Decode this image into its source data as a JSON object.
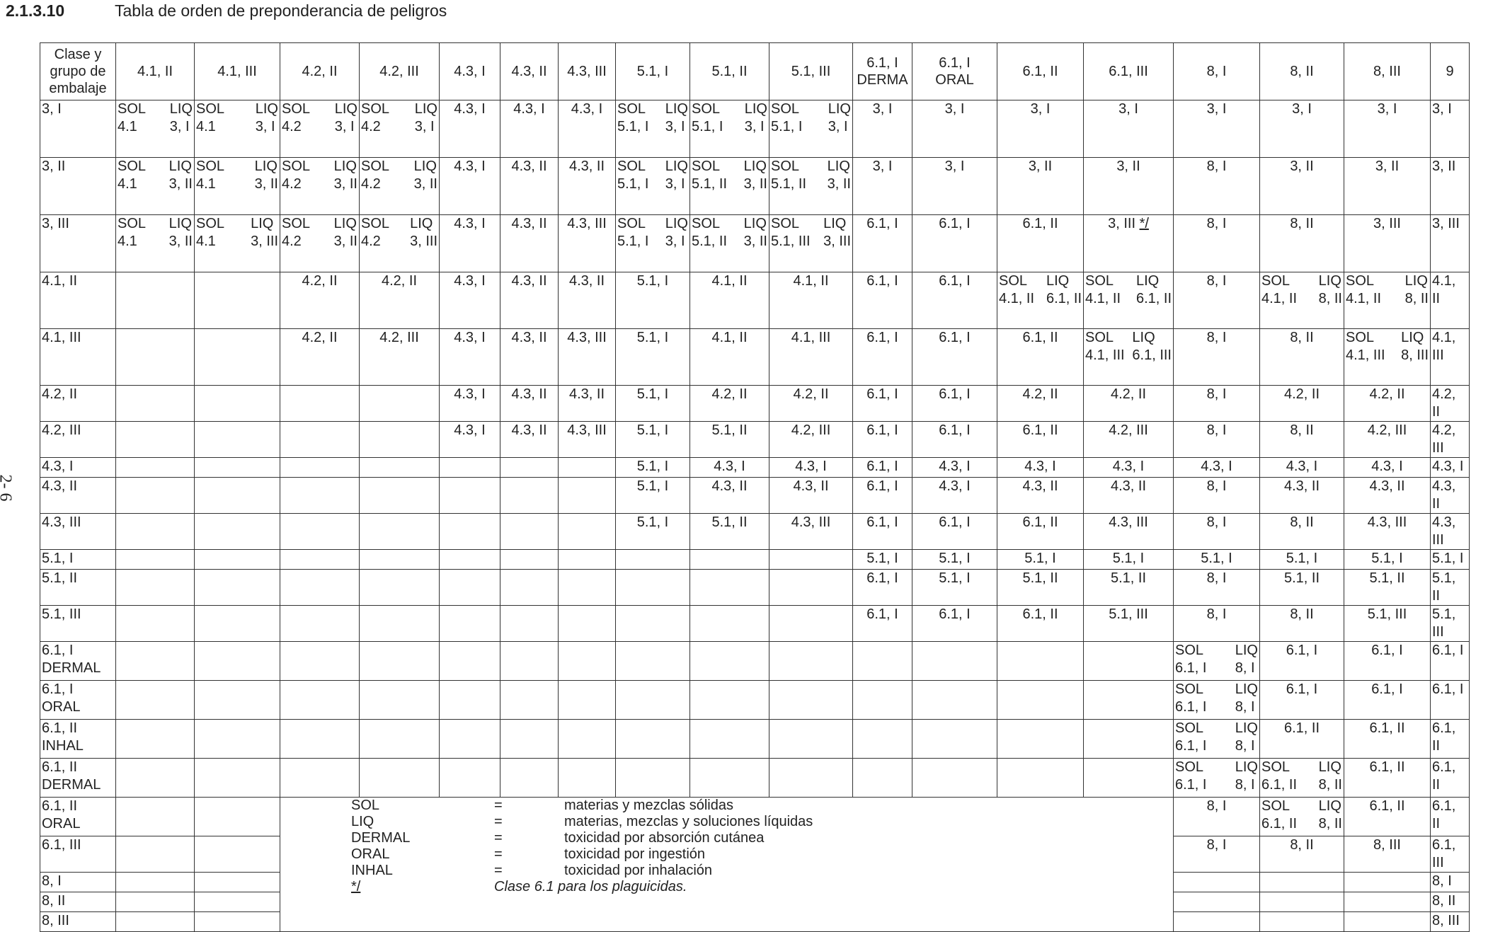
{
  "header": {
    "number": "2.1.3.10",
    "title": "Tabla de orden de preponderancia de peligros"
  },
  "page_number": "2- 6",
  "table": {
    "columns": [
      "Clase y grupo de embalaje",
      "4.1, II",
      "4.1, III",
      "4.2, II",
      "4.2, III",
      "4.3, I",
      "4.3, II",
      "4.3, III",
      "5.1, I",
      "5.1, II",
      "5.1, III",
      "6.1, I\nDERMA",
      "6.1, I\nORAL",
      "6.1, II",
      "6.1, III",
      "8, I",
      "8, II",
      "8, III",
      "9"
    ],
    "rows": [
      {
        "label": "3, I",
        "cells": [
          {
            "sol": "4.1",
            "liq": "3, I"
          },
          {
            "sol": "4.1",
            "liq": "3, I"
          },
          {
            "sol": "4.2",
            "liq": "3, I"
          },
          {
            "sol": "4.2",
            "liq": "3, I"
          },
          "4.3, I",
          "4.3, I",
          "4.3, I",
          {
            "sol": "5.1, I",
            "liq": "3, I"
          },
          {
            "sol": "5.1, I",
            "liq": "3, I"
          },
          {
            "sol": "5.1, I",
            "liq": "3, I"
          },
          "3, I",
          "3, I",
          "3, I",
          "3, I",
          "3, I",
          "3, I",
          "3, I",
          "3, I"
        ]
      },
      {
        "label": "3, II",
        "cells": [
          {
            "sol": "4.1",
            "liq": "3, II"
          },
          {
            "sol": "4.1",
            "liq": "3, II"
          },
          {
            "sol": "4.2",
            "liq": "3, II"
          },
          {
            "sol": "4.2",
            "liq": "3, II"
          },
          "4.3, I",
          "4.3, II",
          "4.3, II",
          {
            "sol": "5.1, I",
            "liq": "3, I"
          },
          {
            "sol": "5.1, II",
            "liq": "3, II"
          },
          {
            "sol": "5.1, II",
            "liq": "3, II"
          },
          "3, I",
          "3, I",
          "3, II",
          "3, II",
          "8, I",
          "3, II",
          "3, II",
          "3, II"
        ]
      },
      {
        "label": "3, III",
        "cells": [
          {
            "sol": "4.1",
            "liq": "3, II"
          },
          {
            "sol": "4.1",
            "liq": "3, III"
          },
          {
            "sol": "4.2",
            "liq": "3, II"
          },
          {
            "sol": "4.2",
            "liq": "3, III"
          },
          "4.3, I",
          "4.3, II",
          "4.3, III",
          {
            "sol": "5.1, I",
            "liq": "3, I"
          },
          {
            "sol": "5.1, II",
            "liq": "3, II"
          },
          {
            "sol": "5.1, III",
            "liq": "3, III"
          },
          "6.1, I",
          "6.1, I",
          "6.1, II",
          {
            "text": "3, III",
            "note": "*/"
          },
          "8, I",
          "8, II",
          "3, III",
          "3, III"
        ]
      },
      {
        "label": "4.1, II",
        "cells": [
          null,
          null,
          "4.2, II",
          "4.2, II",
          "4.3, I",
          "4.3, II",
          "4.3, II",
          "5.1, I",
          "4.1, II",
          "4.1, II",
          "6.1, I",
          "6.1, I",
          {
            "sol": "4.1, II",
            "liq": "6.1, II"
          },
          {
            "sol": "4.1, II",
            "liq": "6.1, II"
          },
          "8, I",
          {
            "sol": "4.1, II",
            "liq": "8, II"
          },
          {
            "sol": "4.1, II",
            "liq": "8, II"
          },
          "4.1, II"
        ]
      },
      {
        "label": "4.1, III",
        "cells": [
          null,
          null,
          "4.2, II",
          "4.2, III",
          "4.3, I",
          "4.3, II",
          "4.3, III",
          "5.1, I",
          "4.1, II",
          "4.1, III",
          "6.1, I",
          "6.1, I",
          "6.1, II",
          {
            "sol": "4.1, III",
            "liq": "6.1, III"
          },
          "8, I",
          "8, II",
          {
            "sol": "4.1, III",
            "liq": "8, III"
          },
          "4.1, III"
        ]
      },
      {
        "label": "4.2, II",
        "cells": [
          null,
          null,
          null,
          null,
          "4.3, I",
          "4.3, II",
          "4.3, II",
          "5.1, I",
          "4.2, II",
          "4.2, II",
          "6.1, I",
          "6.1, I",
          "4.2, II",
          "4.2, II",
          "8, I",
          "4.2, II",
          "4.2, II",
          "4.2, II"
        ]
      },
      {
        "label": "4.2, III",
        "cells": [
          null,
          null,
          null,
          null,
          "4.3, I",
          "4.3, II",
          "4.3, III",
          "5.1, I",
          "5.1, II",
          "4.2, III",
          "6.1, I",
          "6.1, I",
          "6.1, II",
          "4.2, III",
          "8, I",
          "8, II",
          "4.2, III",
          "4.2, III"
        ]
      },
      {
        "label": "4.3, I",
        "cells": [
          null,
          null,
          null,
          null,
          null,
          null,
          null,
          "5.1, I",
          "4.3, I",
          "4.3, I",
          "6.1, I",
          "4.3, I",
          "4.3, I",
          "4.3, I",
          "4.3, I",
          "4.3, I",
          "4.3, I",
          "4.3, I"
        ]
      },
      {
        "label": "4.3, II",
        "cells": [
          null,
          null,
          null,
          null,
          null,
          null,
          null,
          "5.1, I",
          "4.3, II",
          "4.3, II",
          "6.1, I",
          "4.3, I",
          "4.3, II",
          "4.3, II",
          "8, I",
          "4.3, II",
          "4.3, II",
          "4.3, II"
        ]
      },
      {
        "label": "4.3, III",
        "cells": [
          null,
          null,
          null,
          null,
          null,
          null,
          null,
          "5.1, I",
          "5.1, II",
          "4.3, III",
          "6.1, I",
          "6.1, I",
          "6.1, II",
          "4.3, III",
          "8, I",
          "8, II",
          "4.3, III",
          "4.3, III"
        ]
      },
      {
        "label": "5.1, I",
        "cells": [
          null,
          null,
          null,
          null,
          null,
          null,
          null,
          null,
          null,
          null,
          "5.1, I",
          "5.1, I",
          "5.1, I",
          "5.1, I",
          "5.1, I",
          "5.1, I",
          "5.1, I",
          "5.1, I"
        ]
      },
      {
        "label": "5.1, II",
        "cells": [
          null,
          null,
          null,
          null,
          null,
          null,
          null,
          null,
          null,
          null,
          "6.1, I",
          "5.1, I",
          "5.1, II",
          "5.1, II",
          "8, I",
          "5.1, II",
          "5.1, II",
          "5.1, II"
        ]
      },
      {
        "label": "5.1, III",
        "cells": [
          null,
          null,
          null,
          null,
          null,
          null,
          null,
          null,
          null,
          null,
          "6.1, I",
          "6.1, I",
          "6.1, II",
          "5.1, III",
          "8, I",
          "8, II",
          "5.1, III",
          "5.1, III"
        ]
      },
      {
        "label": "6.1, I\nDERMAL",
        "cells": [
          null,
          null,
          null,
          null,
          null,
          null,
          null,
          null,
          null,
          null,
          null,
          null,
          null,
          null,
          {
            "sol": "6.1, I",
            "liq": "8, I"
          },
          "6.1, I",
          "6.1, I",
          "6.1, I"
        ]
      },
      {
        "label": "6.1, I\nORAL",
        "cells": [
          null,
          null,
          null,
          null,
          null,
          null,
          null,
          null,
          null,
          null,
          null,
          null,
          null,
          null,
          {
            "sol": "6.1, I",
            "liq": "8, I"
          },
          "6.1, I",
          "6.1, I",
          "6.1, I"
        ]
      },
      {
        "label": "6.1, II\nINHAL",
        "cells": [
          null,
          null,
          null,
          null,
          null,
          null,
          null,
          null,
          null,
          null,
          null,
          null,
          null,
          null,
          {
            "sol": "6.1, I",
            "liq": "8, I"
          },
          "6.1, II",
          "6.1, II",
          "6.1, II"
        ]
      },
      {
        "label": "6.1, II\nDERMAL",
        "cells": [
          null,
          null,
          null,
          null,
          null,
          null,
          null,
          null,
          null,
          null,
          null,
          null,
          null,
          null,
          {
            "sol": "6.1, I",
            "liq": "8, I"
          },
          {
            "sol": "6.1, II",
            "liq": "8, II"
          },
          "6.1, II",
          "6.1, II"
        ]
      },
      {
        "label": "6.1, II\nORAL",
        "cells": [
          null,
          null,
          null,
          null,
          null,
          null,
          null,
          null,
          null,
          null,
          null,
          null,
          null,
          null,
          "8, I",
          {
            "sol": "6.1, II",
            "liq": "8, II"
          },
          "6.1, II",
          "6.1, II"
        ]
      },
      {
        "label": "6.1, III",
        "cells": [
          null,
          null,
          null,
          null,
          null,
          null,
          null,
          null,
          null,
          null,
          null,
          null,
          null,
          null,
          "8, I",
          "8, II",
          "8, III",
          "6.1, III"
        ]
      },
      {
        "label": "8, I",
        "cells": [
          null,
          null,
          null,
          null,
          null,
          null,
          null,
          null,
          null,
          null,
          null,
          null,
          null,
          null,
          null,
          null,
          null,
          "8, I"
        ]
      },
      {
        "label": "8, II",
        "cells": [
          null,
          null,
          null,
          null,
          null,
          null,
          null,
          null,
          null,
          null,
          null,
          null,
          null,
          null,
          null,
          null,
          null,
          "8, II"
        ]
      },
      {
        "label": "8, III",
        "cells": [
          null,
          null,
          null,
          null,
          null,
          null,
          null,
          null,
          null,
          null,
          null,
          null,
          null,
          null,
          null,
          null,
          null,
          "8, III"
        ]
      }
    ]
  },
  "legend": {
    "separator": "=",
    "items": [
      {
        "term": "SOL",
        "definition": "materias y mezclas sólidas"
      },
      {
        "term": "LIQ",
        "definition": "materias, mezclas y soluciones líquidas"
      },
      {
        "term": "DERMAL",
        "definition": "toxicidad por absorción cutánea"
      },
      {
        "term": "ORAL",
        "definition": "toxicidad por ingestión"
      },
      {
        "term": "INHAL",
        "definition": "toxicidad por inhalación"
      },
      {
        "term": "*/",
        "definition": "Clase 6.1 para los plaguicidas."
      }
    ]
  }
}
